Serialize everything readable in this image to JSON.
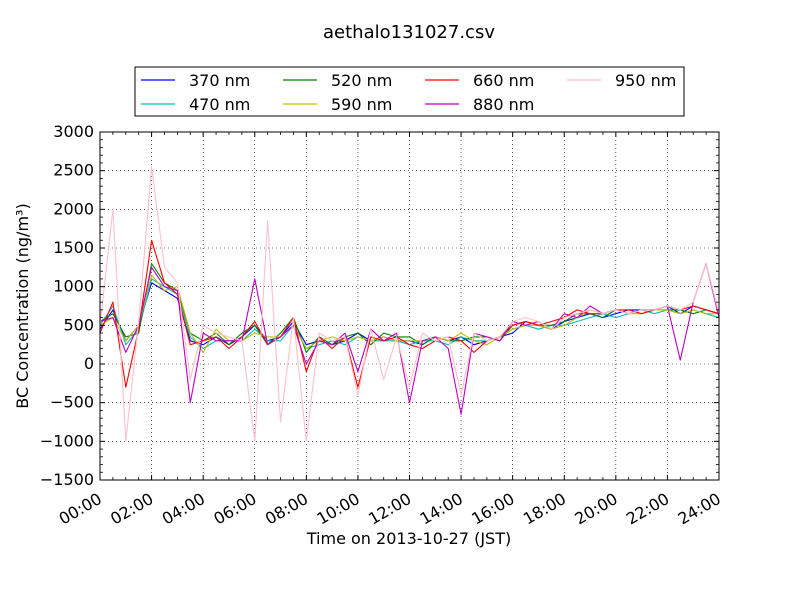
{
  "chart_data": {
    "type": "line",
    "title": "aethalo131027.csv",
    "xlabel": "Time on 2013-10-27 (JST)",
    "ylabel": "BC Concentration (ng/m³)",
    "xlim": [
      "00:00",
      "24:00"
    ],
    "ylim": [
      -1500,
      3000
    ],
    "x_ticks": [
      "00:00",
      "02:00",
      "04:00",
      "06:00",
      "08:00",
      "10:00",
      "12:00",
      "14:00",
      "16:00",
      "18:00",
      "20:00",
      "22:00",
      "24:00"
    ],
    "y_ticks": [
      -1500,
      -1000,
      -500,
      0,
      500,
      1000,
      1500,
      2000,
      2500,
      3000
    ],
    "grid": true,
    "legend_position": "top",
    "x": [
      "00:00",
      "00:30",
      "01:00",
      "01:30",
      "02:00",
      "02:30",
      "03:00",
      "03:30",
      "04:00",
      "04:30",
      "05:00",
      "05:30",
      "06:00",
      "06:30",
      "07:00",
      "07:30",
      "08:00",
      "08:30",
      "09:00",
      "09:30",
      "10:00",
      "10:30",
      "11:00",
      "11:30",
      "12:00",
      "12:30",
      "13:00",
      "13:30",
      "14:00",
      "14:30",
      "15:00",
      "15:30",
      "16:00",
      "16:30",
      "17:00",
      "17:30",
      "18:00",
      "18:30",
      "19:00",
      "19:30",
      "20:00",
      "20:30",
      "21:00",
      "21:30",
      "22:00",
      "22:30",
      "23:00",
      "23:30",
      "24:00"
    ],
    "series": [
      {
        "name": "370 nm",
        "color": "#0000ff",
        "values": [
          450,
          700,
          300,
          500,
          1050,
          950,
          850,
          300,
          250,
          350,
          250,
          350,
          500,
          300,
          350,
          550,
          250,
          300,
          250,
          300,
          400,
          300,
          350,
          300,
          300,
          250,
          350,
          300,
          350,
          250,
          300,
          350,
          400,
          550,
          500,
          450,
          550,
          600,
          650,
          600,
          650,
          700,
          700,
          700,
          750,
          650,
          750,
          700,
          650
        ]
      },
      {
        "name": "470 nm",
        "color": "#00bfbf",
        "values": [
          500,
          750,
          250,
          450,
          1100,
          1000,
          900,
          350,
          200,
          300,
          300,
          300,
          450,
          300,
          300,
          500,
          200,
          250,
          300,
          250,
          350,
          300,
          300,
          300,
          250,
          300,
          300,
          250,
          350,
          300,
          300,
          350,
          450,
          500,
          450,
          500,
          500,
          550,
          600,
          650,
          600,
          650,
          700,
          650,
          700,
          650,
          700,
          650,
          600
        ]
      },
      {
        "name": "520 nm",
        "color": "#008000",
        "values": [
          550,
          650,
          350,
          400,
          1300,
          1050,
          950,
          400,
          300,
          400,
          250,
          400,
          500,
          250,
          400,
          600,
          150,
          350,
          250,
          350,
          400,
          250,
          400,
          350,
          350,
          250,
          350,
          300,
          300,
          350,
          350,
          300,
          500,
          550,
          500,
          500,
          550,
          650,
          650,
          600,
          700,
          650,
          700,
          700,
          700,
          700,
          650,
          700,
          650
        ]
      },
      {
        "name": "590 nm",
        "color": "#bfbf00",
        "values": [
          500,
          600,
          300,
          500,
          1150,
          950,
          1000,
          400,
          150,
          450,
          300,
          300,
          400,
          350,
          350,
          500,
          200,
          300,
          350,
          300,
          350,
          300,
          350,
          300,
          300,
          300,
          350,
          300,
          400,
          300,
          250,
          350,
          450,
          500,
          500,
          450,
          500,
          600,
          700,
          650,
          700,
          650,
          650,
          700,
          700,
          650,
          700,
          650,
          650
        ]
      },
      {
        "name": "660 nm",
        "color": "#ff0000",
        "values": [
          400,
          800,
          -300,
          450,
          1600,
          1050,
          900,
          250,
          300,
          350,
          200,
          350,
          550,
          250,
          350,
          600,
          -100,
          350,
          200,
          350,
          -300,
          350,
          300,
          350,
          250,
          200,
          300,
          350,
          300,
          150,
          300,
          350,
          500,
          550,
          500,
          550,
          600,
          700,
          650,
          650,
          700,
          700,
          650,
          700,
          750,
          700,
          750,
          700,
          650
        ]
      },
      {
        "name": "880 nm",
        "color": "#bf00bf",
        "values": [
          550,
          600,
          150,
          500,
          1250,
          1000,
          950,
          -500,
          400,
          300,
          300,
          300,
          1100,
          250,
          350,
          500,
          0,
          300,
          250,
          400,
          -100,
          450,
          300,
          400,
          -500,
          300,
          350,
          200,
          -650,
          400,
          350,
          300,
          550,
          500,
          550,
          450,
          650,
          600,
          750,
          650,
          700,
          650,
          700,
          700,
          750,
          50,
          800,
          1300,
          600
        ]
      },
      {
        "name": "950 nm",
        "color": "#ffc0cb",
        "values": [
          500,
          2000,
          -1000,
          550,
          2550,
          1250,
          1050,
          -200,
          500,
          400,
          350,
          300,
          -1000,
          1850,
          -750,
          600,
          -1000,
          400,
          300,
          350,
          -400,
          450,
          -200,
          350,
          -300,
          400,
          300,
          350,
          -400,
          400,
          300,
          350,
          550,
          600,
          550,
          450,
          600,
          650,
          700,
          650,
          700,
          650,
          700,
          700,
          750,
          700,
          800,
          1300,
          650
        ]
      }
    ]
  }
}
